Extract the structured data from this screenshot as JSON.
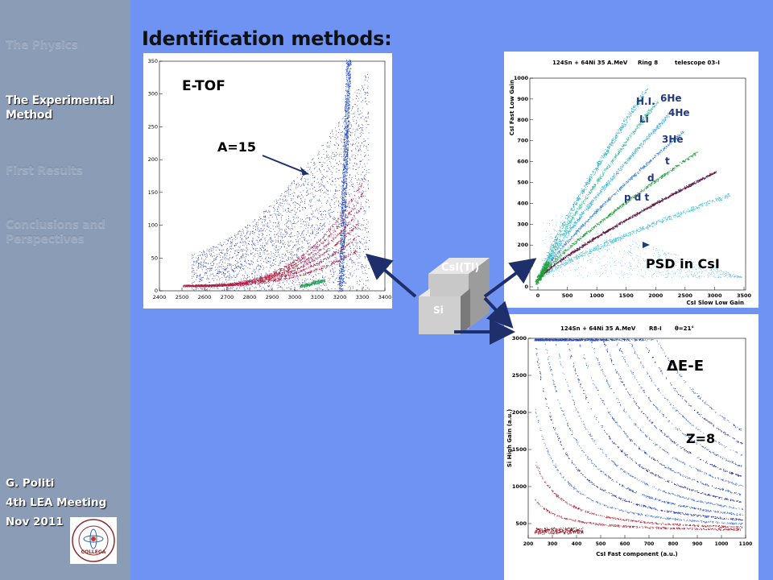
{
  "sidebar": {
    "nav": [
      {
        "label": "The Physics",
        "active": false
      },
      {
        "label": "The Experimental Method",
        "active": true
      },
      {
        "label": "First Results",
        "active": false
      },
      {
        "label": "Conclusions and Perspectives",
        "active": false
      }
    ],
    "author": "G. Politi",
    "meeting": "4th LEA Meeting",
    "date": "Nov 2011",
    "logo_text": "COLLEGA"
  },
  "title": "Identification methods:",
  "etof": {
    "label": "E-TOF",
    "annotation": "A=15",
    "x_ticks": [
      "2400",
      "2500",
      "2600",
      "2700",
      "2800",
      "2900",
      "3000",
      "3100",
      "3200",
      "3300",
      "3400"
    ],
    "y_ticks": [
      "0",
      "50",
      "100",
      "150",
      "200",
      "250",
      "300",
      "350"
    ]
  },
  "detector": {
    "csi_label": "CsI(Tl)",
    "si_label": "Si"
  },
  "psd": {
    "header_reaction": "124Sn + 64Ni 35 A.MeV",
    "header_ring": "Ring 8",
    "header_telescope": "telescope 03-I",
    "xlabel": "CsI Slow Low Gain",
    "ylabel": "CsI Fast Low Gain",
    "x_ticks": [
      "0",
      "500",
      "1000",
      "1500",
      "2000",
      "2500",
      "3000",
      "3500"
    ],
    "y_ticks": [
      "0",
      "100",
      "200",
      "300",
      "400",
      "500",
      "600",
      "700",
      "800",
      "900",
      "1000"
    ],
    "labels": {
      "hi": "H.I.",
      "he6": "6He",
      "he4": "4He",
      "li": "Li",
      "he3": "3He",
      "t": "t",
      "d": "d",
      "pdt": "p d t"
    },
    "caption": "PSD in CsI"
  },
  "dee": {
    "header_reaction": "124Sn + 64Ni 35 A.MeV",
    "header_run": "R8-I",
    "header_angle": "θ=21°",
    "xlabel": "CsI Fast component (a.u.)",
    "ylabel": "Si High Gain (a.u.)",
    "x_ticks": [
      "200",
      "300",
      "400",
      "500",
      "600",
      "700",
      "800",
      "900",
      "1000",
      "1100"
    ],
    "y_ticks": [
      "500",
      "1000",
      "1500",
      "2000",
      "2500",
      "3000"
    ],
    "label": "ΔE-E",
    "annotation": "Z=8"
  },
  "colors": {
    "background": "#6f93f2",
    "sidebar": "#8b9cb6",
    "arrow": "#1f2f6b"
  }
}
